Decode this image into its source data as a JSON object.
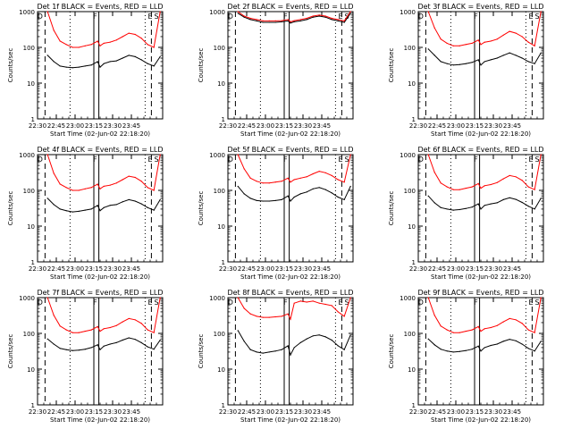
{
  "ylabel": "Counts/sec",
  "xlabel": "Start Time (02-Jun-02 22:18:20)",
  "title_suffix": "BLACK = Events, RED = LLD",
  "y_ticks": [
    "1",
    "10",
    "100",
    "1000"
  ],
  "x_ticks": [
    "22:30",
    "22:45",
    "23:00",
    "23:15",
    "23:30",
    "23:45"
  ],
  "marker_labels": [
    "D",
    "F",
    "E",
    "S"
  ],
  "colors": {
    "events": "#000000",
    "lld": "#ff0000"
  },
  "chart_data": [
    {
      "type": "line",
      "title": "Det 1f BLACK = Events, RED = LLD",
      "yscale": "log",
      "ylim": [
        1,
        1000
      ],
      "x_minutes": [
        20,
        25,
        30,
        35,
        40,
        45,
        50,
        55,
        60,
        62,
        65,
        70,
        75,
        80,
        85,
        90,
        95,
        100,
        105,
        110
      ],
      "series": [
        {
          "name": "Events",
          "values": [
            60,
            40,
            30,
            28,
            27,
            28,
            30,
            32,
            40,
            28,
            35,
            40,
            42,
            50,
            60,
            55,
            45,
            35,
            30,
            55
          ]
        },
        {
          "name": "LLD",
          "values": [
            1000,
            300,
            150,
            120,
            100,
            100,
            110,
            120,
            150,
            110,
            130,
            140,
            160,
            200,
            250,
            230,
            180,
            120,
            100,
            1000
          ]
        }
      ]
    },
    {
      "type": "line",
      "title": "Det 2f BLACK = Events, RED = LLD",
      "yscale": "log",
      "ylim": [
        1,
        1000
      ],
      "x_minutes": [
        20,
        25,
        30,
        35,
        40,
        45,
        50,
        55,
        60,
        62,
        65,
        70,
        75,
        80,
        85,
        90,
        95,
        100,
        105,
        110
      ],
      "series": [
        {
          "name": "Events",
          "values": [
            900,
            700,
            600,
            550,
            500,
            500,
            500,
            520,
            550,
            480,
            520,
            550,
            600,
            700,
            750,
            700,
            600,
            550,
            500,
            900
          ]
        },
        {
          "name": "LLD",
          "values": [
            1000,
            750,
            650,
            600,
            550,
            550,
            550,
            560,
            600,
            520,
            560,
            600,
            650,
            750,
            800,
            750,
            650,
            600,
            550,
            1000
          ]
        }
      ]
    },
    {
      "type": "line",
      "title": "Det 3f BLACK = Events, RED = LLD",
      "yscale": "log",
      "ylim": [
        1,
        1000
      ],
      "x_minutes": [
        20,
        25,
        30,
        35,
        40,
        45,
        50,
        55,
        60,
        62,
        65,
        70,
        75,
        80,
        85,
        90,
        95,
        100,
        105,
        110
      ],
      "series": [
        {
          "name": "Events",
          "values": [
            90,
            60,
            40,
            35,
            32,
            33,
            35,
            38,
            45,
            32,
            40,
            45,
            50,
            60,
            70,
            60,
            50,
            40,
            35,
            70
          ]
        },
        {
          "name": "LLD",
          "values": [
            1000,
            350,
            170,
            130,
            110,
            110,
            120,
            130,
            160,
            120,
            140,
            150,
            170,
            220,
            280,
            250,
            200,
            140,
            110,
            1000
          ]
        }
      ]
    },
    {
      "type": "line",
      "title": "Det 4f BLACK = Events, RED = LLD",
      "yscale": "log",
      "ylim": [
        1,
        1000
      ],
      "x_minutes": [
        20,
        25,
        30,
        35,
        40,
        45,
        50,
        55,
        60,
        62,
        65,
        70,
        75,
        80,
        85,
        90,
        95,
        100,
        105,
        110
      ],
      "series": [
        {
          "name": "Events",
          "values": [
            60,
            40,
            30,
            27,
            25,
            26,
            28,
            30,
            38,
            27,
            33,
            38,
            40,
            48,
            55,
            50,
            42,
            33,
            28,
            55
          ]
        },
        {
          "name": "LLD",
          "values": [
            1000,
            300,
            150,
            120,
            100,
            100,
            110,
            120,
            150,
            110,
            130,
            140,
            160,
            200,
            250,
            230,
            180,
            120,
            100,
            1000
          ]
        }
      ]
    },
    {
      "type": "line",
      "title": "Det 5f BLACK = Events, RED = LLD",
      "yscale": "log",
      "ylim": [
        1,
        1000
      ],
      "x_minutes": [
        20,
        25,
        30,
        35,
        40,
        45,
        50,
        55,
        60,
        62,
        65,
        70,
        75,
        80,
        85,
        90,
        95,
        100,
        105,
        110
      ],
      "series": [
        {
          "name": "Events",
          "values": [
            130,
            80,
            60,
            52,
            50,
            50,
            52,
            55,
            70,
            50,
            65,
            80,
            90,
            110,
            120,
            105,
            85,
            65,
            55,
            130
          ]
        },
        {
          "name": "LLD",
          "values": [
            1000,
            400,
            220,
            180,
            160,
            160,
            170,
            180,
            220,
            170,
            200,
            220,
            240,
            290,
            340,
            310,
            260,
            200,
            170,
            1000
          ]
        }
      ]
    },
    {
      "type": "line",
      "title": "Det 6f BLACK = Events, RED = LLD",
      "yscale": "log",
      "ylim": [
        1,
        1000
      ],
      "x_minutes": [
        20,
        25,
        30,
        35,
        40,
        45,
        50,
        55,
        60,
        62,
        65,
        70,
        75,
        80,
        85,
        90,
        95,
        100,
        105,
        110
      ],
      "series": [
        {
          "name": "Events",
          "values": [
            70,
            45,
            33,
            30,
            28,
            29,
            31,
            34,
            42,
            30,
            38,
            42,
            45,
            55,
            62,
            56,
            46,
            36,
            30,
            60
          ]
        },
        {
          "name": "LLD",
          "values": [
            1000,
            320,
            160,
            125,
            105,
            105,
            115,
            125,
            155,
            115,
            135,
            145,
            165,
            210,
            260,
            240,
            190,
            125,
            105,
            1000
          ]
        }
      ]
    },
    {
      "type": "line",
      "title": "Det 7f BLACK = Events, RED = LLD",
      "yscale": "log",
      "ylim": [
        1,
        1000
      ],
      "x_minutes": [
        20,
        25,
        30,
        35,
        40,
        45,
        50,
        55,
        60,
        62,
        65,
        70,
        75,
        80,
        85,
        90,
        95,
        100,
        105,
        110
      ],
      "series": [
        {
          "name": "Events",
          "values": [
            70,
            50,
            38,
            35,
            33,
            34,
            36,
            40,
            48,
            35,
            44,
            50,
            55,
            65,
            75,
            68,
            55,
            42,
            36,
            65
          ]
        },
        {
          "name": "LLD",
          "values": [
            1000,
            320,
            160,
            125,
            105,
            105,
            115,
            125,
            155,
            115,
            135,
            145,
            165,
            210,
            260,
            240,
            190,
            125,
            105,
            1000
          ]
        }
      ]
    },
    {
      "type": "line",
      "title": "Det 8f BLACK = Events, RED = LLD",
      "yscale": "log",
      "ylim": [
        1,
        1000
      ],
      "x_minutes": [
        20,
        25,
        30,
        35,
        40,
        45,
        50,
        55,
        60,
        62,
        65,
        70,
        75,
        80,
        85,
        90,
        95,
        100,
        105,
        110
      ],
      "series": [
        {
          "name": "Events",
          "values": [
            120,
            60,
            35,
            30,
            28,
            30,
            32,
            35,
            45,
            25,
            40,
            55,
            70,
            85,
            90,
            80,
            65,
            45,
            35,
            90
          ]
        },
        {
          "name": "LLD",
          "values": [
            1000,
            500,
            350,
            300,
            280,
            280,
            290,
            300,
            350,
            250,
            700,
            800,
            750,
            800,
            700,
            650,
            600,
            400,
            300,
            1000
          ]
        }
      ]
    },
    {
      "type": "line",
      "title": "Det 9f BLACK = Events, RED = LLD",
      "yscale": "log",
      "ylim": [
        1,
        1000
      ],
      "x_minutes": [
        20,
        25,
        30,
        35,
        40,
        45,
        50,
        55,
        60,
        62,
        65,
        70,
        75,
        80,
        85,
        90,
        95,
        100,
        105,
        110
      ],
      "series": [
        {
          "name": "Events",
          "values": [
            70,
            48,
            36,
            32,
            30,
            31,
            33,
            36,
            44,
            32,
            40,
            46,
            50,
            60,
            68,
            62,
            50,
            38,
            32,
            60
          ]
        },
        {
          "name": "LLD",
          "values": [
            1000,
            320,
            160,
            125,
            105,
            105,
            115,
            125,
            155,
            115,
            135,
            145,
            165,
            210,
            260,
            240,
            190,
            125,
            105,
            1000
          ]
        }
      ]
    }
  ]
}
